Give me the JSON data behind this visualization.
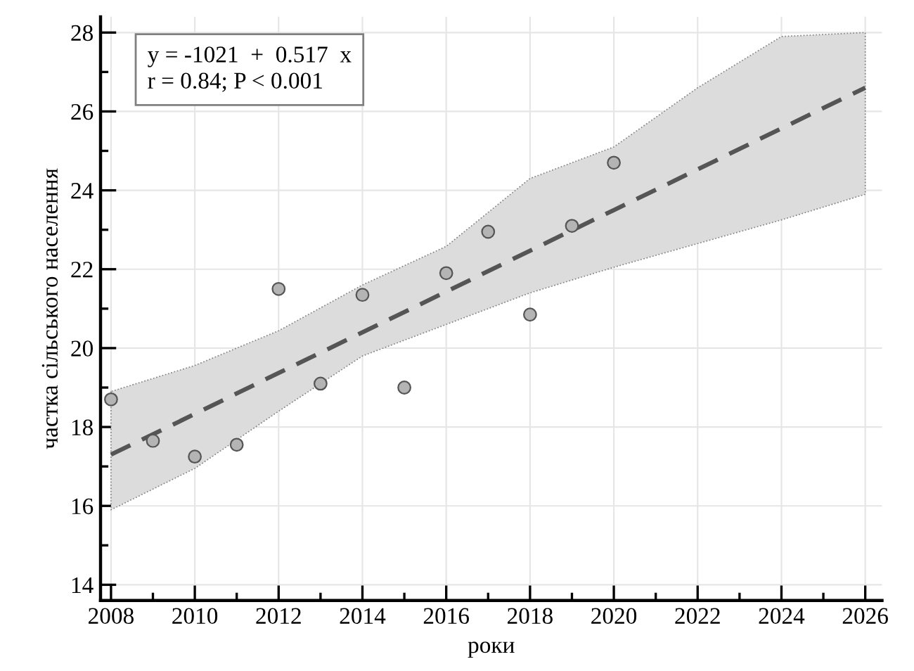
{
  "chart_data": {
    "type": "scatter",
    "xlabel": "роки",
    "ylabel": "частка сільського населення",
    "xlim": [
      2007.75,
      2026.4
    ],
    "ylim": [
      13.6,
      28.4
    ],
    "xticks": [
      2008,
      {
        "value": 2009,
        "label": null
      },
      2010,
      {
        "value": 2011,
        "label": null
      },
      2012,
      {
        "value": 2013,
        "label": null
      },
      2014,
      {
        "value": 2015,
        "label": null
      },
      2016,
      {
        "value": 2017,
        "label": null
      },
      2018,
      {
        "value": 2019,
        "label": null
      },
      2020,
      {
        "value": 2021,
        "label": null
      },
      2022,
      {
        "value": 2023,
        "label": null
      },
      2024,
      {
        "value": 2025,
        "label": null
      },
      2026
    ],
    "yticks": [
      14,
      {
        "value": 15,
        "label": null
      },
      16,
      {
        "value": 17,
        "label": null
      },
      18,
      {
        "value": 19,
        "label": null
      },
      20,
      {
        "value": 21,
        "label": null
      },
      22,
      {
        "value": 23,
        "label": null
      },
      24,
      {
        "value": 25,
        "label": null
      },
      26,
      {
        "value": 27,
        "label": null
      },
      28
    ],
    "grid": true,
    "marker": "circle",
    "annotations": [
      "y = -1021  +  0.517  x\nr = 0.84; P < 0.001"
    ],
    "series": [
      {
        "type": "line",
        "line_style": "dashed",
        "marker": "none",
        "color": "#555555",
        "x": [
          2008,
          2010,
          2012,
          2014,
          2016,
          2018,
          2020,
          2022,
          2024,
          2026
        ],
        "values": [
          17.3,
          18.33,
          19.37,
          20.4,
          21.43,
          22.47,
          23.5,
          24.53,
          25.57,
          26.6
        ],
        "lower": [
          15.9,
          16.95,
          18.4,
          19.8,
          20.6,
          21.4,
          22.05,
          22.65,
          23.25,
          23.9
        ],
        "upper": [
          18.9,
          19.56,
          20.44,
          21.6,
          22.58,
          24.3,
          25.1,
          26.6,
          27.9,
          28.0
        ]
      },
      {
        "color": "#b4b4b4",
        "x": [
          2008,
          2009,
          2010,
          2011,
          2012,
          2013,
          2014,
          2015,
          2016,
          2017,
          2018,
          2019,
          2020
        ],
        "values": [
          18.7,
          17.65,
          17.25,
          17.55,
          21.5,
          19.1,
          21.35,
          19.0,
          21.9,
          22.95,
          20.85,
          23.1,
          24.7
        ]
      }
    ]
  }
}
